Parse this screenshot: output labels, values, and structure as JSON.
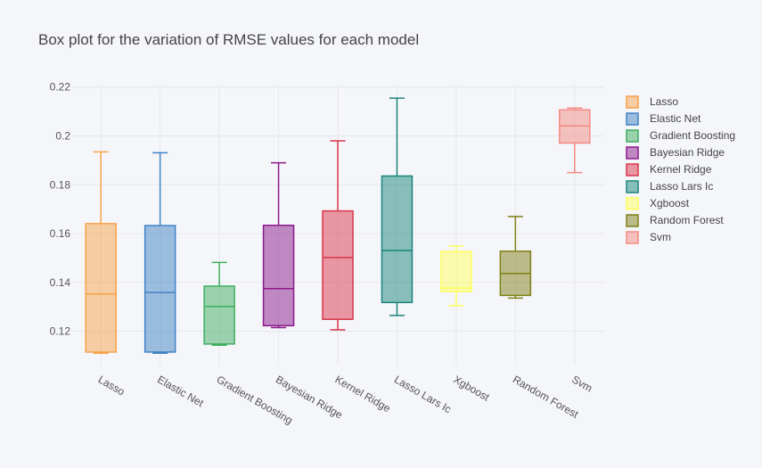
{
  "chart_data": {
    "type": "box",
    "title": "Box plot for the variation of RMSE values for each model",
    "xlabel": "",
    "ylabel": "",
    "ylim": [
      0.106,
      0.221
    ],
    "yticks": [
      0.12,
      0.14,
      0.16,
      0.18,
      0.2,
      0.22
    ],
    "ytick_labels": [
      "0.12",
      "0.14",
      "0.16",
      "0.18",
      "0.2",
      "0.22"
    ],
    "grid": true,
    "legend_position": "right",
    "series": [
      {
        "name": "Lasso",
        "color": "#f7a24a",
        "min": 0.111,
        "q1": 0.1115,
        "median": 0.1353,
        "q3": 0.1641,
        "max": 0.1935
      },
      {
        "name": "Elastic Net",
        "color": "#3f82c4",
        "min": 0.111,
        "q1": 0.1115,
        "median": 0.1359,
        "q3": 0.1633,
        "max": 0.1931
      },
      {
        "name": "Gradient Boosting",
        "color": "#3fae5f",
        "min": 0.1143,
        "q1": 0.1148,
        "median": 0.1302,
        "q3": 0.1385,
        "max": 0.1482
      },
      {
        "name": "Bayesian Ridge",
        "color": "#8b1a8b",
        "min": 0.1215,
        "q1": 0.1223,
        "median": 0.1375,
        "q3": 0.1634,
        "max": 0.189
      },
      {
        "name": "Kernel Ridge",
        "color": "#d9364a",
        "min": 0.1206,
        "q1": 0.1249,
        "median": 0.1502,
        "q3": 0.1693,
        "max": 0.198
      },
      {
        "name": "Lasso Lars Ic",
        "color": "#1a857a",
        "min": 0.1265,
        "q1": 0.1318,
        "median": 0.1531,
        "q3": 0.1836,
        "max": 0.2155
      },
      {
        "name": "Xgboost",
        "color": "#ffff5e",
        "min": 0.1305,
        "q1": 0.1363,
        "median": 0.1377,
        "q3": 0.1527,
        "max": 0.1549
      },
      {
        "name": "Random Forest",
        "color": "#808018",
        "min": 0.1336,
        "q1": 0.1347,
        "median": 0.1437,
        "q3": 0.1528,
        "max": 0.167
      },
      {
        "name": "Svm",
        "color": "#f48a82",
        "min": 0.185,
        "q1": 0.1971,
        "median": 0.2041,
        "q3": 0.2107,
        "max": 0.2114
      }
    ]
  }
}
